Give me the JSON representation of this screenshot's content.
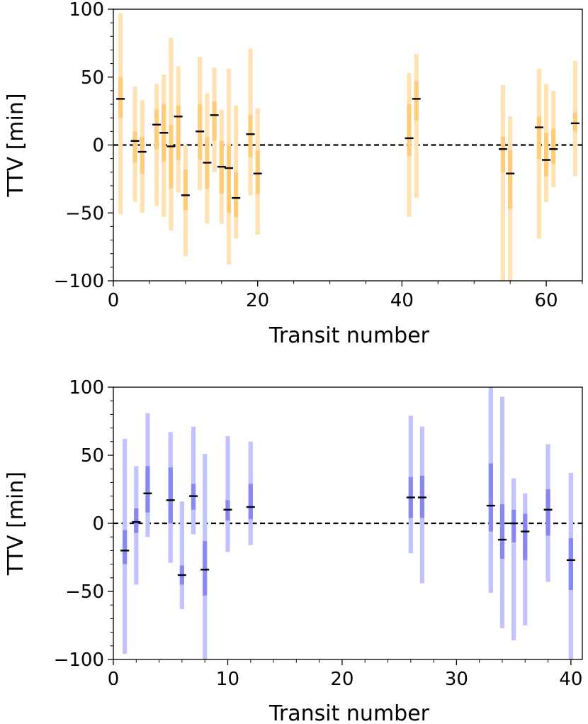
{
  "chart_data": [
    {
      "type": "errorbar",
      "id": "top",
      "xlabel": "Transit number",
      "ylabel": "TTV [min]",
      "xlim": [
        0,
        65
      ],
      "ylim": [
        -100,
        100
      ],
      "xticks": [
        0,
        20,
        40,
        60
      ],
      "xtick_labels": [
        "0",
        "20",
        "40",
        "60"
      ],
      "yticks": [
        -100,
        -50,
        0,
        50,
        100
      ],
      "ytick_labels": [
        "−100",
        "−50",
        "0",
        "50",
        "100"
      ],
      "zero_line": 0,
      "colors": {
        "outer": "#ffe2b3",
        "inner": "#ffcc7a",
        "marker": "#000000"
      },
      "points": [
        {
          "x": 1,
          "y": 34,
          "inner": [
            20,
            50
          ],
          "outer": [
            -51,
            97
          ]
        },
        {
          "x": 3,
          "y": 3,
          "inner": [
            -13,
            10
          ],
          "outer": [
            -42,
            43
          ]
        },
        {
          "x": 4,
          "y": -5,
          "inner": [
            -21,
            6
          ],
          "outer": [
            -50,
            33
          ]
        },
        {
          "x": 6,
          "y": 15,
          "inner": [
            -3,
            26
          ],
          "outer": [
            -45,
            45
          ]
        },
        {
          "x": 7,
          "y": 9,
          "inner": [
            -12,
            30
          ],
          "outer": [
            -53,
            52
          ]
        },
        {
          "x": 8,
          "y": -1,
          "inner": [
            -32,
            15
          ],
          "outer": [
            -63,
            79
          ]
        },
        {
          "x": 9,
          "y": 21,
          "inner": [
            -11,
            29
          ],
          "outer": [
            -35,
            58
          ]
        },
        {
          "x": 10,
          "y": -37,
          "inner": [
            -48,
            -18
          ],
          "outer": [
            -82,
            0
          ]
        },
        {
          "x": 12,
          "y": 10,
          "inner": [
            -11,
            30
          ],
          "outer": [
            -33,
            65
          ]
        },
        {
          "x": 13,
          "y": -13,
          "inner": [
            -32,
            6
          ],
          "outer": [
            -58,
            38
          ]
        },
        {
          "x": 14,
          "y": 22,
          "inner": [
            3,
            32
          ],
          "outer": [
            -20,
            57
          ]
        },
        {
          "x": 15,
          "y": -16,
          "inner": [
            -36,
            3
          ],
          "outer": [
            -58,
            26
          ]
        },
        {
          "x": 16,
          "y": -17,
          "inner": [
            -50,
            0
          ],
          "outer": [
            -88,
            56
          ]
        },
        {
          "x": 17,
          "y": -39,
          "inner": [
            -53,
            -20
          ],
          "outer": [
            -69,
            29
          ]
        },
        {
          "x": 19,
          "y": 8,
          "inner": [
            -9,
            22
          ],
          "outer": [
            -37,
            71
          ]
        },
        {
          "x": 20,
          "y": -21,
          "inner": [
            -36,
            -4
          ],
          "outer": [
            -66,
            27
          ]
        },
        {
          "x": 41,
          "y": 5,
          "inner": [
            -8,
            30
          ],
          "outer": [
            -53,
            53
          ]
        },
        {
          "x": 42,
          "y": 34,
          "inner": [
            18,
            47
          ],
          "outer": [
            -39,
            67
          ]
        },
        {
          "x": 54,
          "y": -3,
          "inner": [
            -20,
            6
          ],
          "outer": [
            -100,
            44
          ]
        },
        {
          "x": 55,
          "y": -21,
          "inner": [
            -47,
            -4
          ],
          "outer": [
            -100,
            21
          ]
        },
        {
          "x": 59,
          "y": 13,
          "inner": [
            -10,
            21
          ],
          "outer": [
            -69,
            56
          ]
        },
        {
          "x": 60,
          "y": -11,
          "inner": [
            -23,
            9
          ],
          "outer": [
            -42,
            45
          ]
        },
        {
          "x": 61,
          "y": -3,
          "inner": [
            -14,
            12
          ],
          "outer": [
            -31,
            40
          ]
        },
        {
          "x": 64,
          "y": 16,
          "inner": [
            10,
            24
          ],
          "outer": [
            -23,
            62
          ]
        }
      ]
    },
    {
      "type": "errorbar",
      "id": "bottom",
      "xlabel": "Transit number",
      "ylabel": "TTV [min]",
      "xlim": [
        0,
        41
      ],
      "ylim": [
        -100,
        100
      ],
      "xticks": [
        0,
        10,
        20,
        30,
        40
      ],
      "xtick_labels": [
        "0",
        "10",
        "20",
        "30",
        "40"
      ],
      "yticks": [
        -100,
        -50,
        0,
        50,
        100
      ],
      "ytick_labels": [
        "−100",
        "−50",
        "0",
        "50",
        "100"
      ],
      "zero_line": 0,
      "colors": {
        "outer": "#c2c2ff",
        "inner": "#8888f5",
        "marker": "#000000"
      },
      "points": [
        {
          "x": 1,
          "y": -20,
          "inner": [
            -30,
            -5
          ],
          "outer": [
            -96,
            62
          ]
        },
        {
          "x": 2,
          "y": 1,
          "inner": [
            -7,
            11
          ],
          "outer": [
            -45,
            42
          ]
        },
        {
          "x": 3,
          "y": 22,
          "inner": [
            8,
            42
          ],
          "outer": [
            -10,
            81
          ]
        },
        {
          "x": 5,
          "y": 17,
          "inner": [
            0,
            41
          ],
          "outer": [
            -29,
            67
          ]
        },
        {
          "x": 6,
          "y": -38,
          "inner": [
            -45,
            -31
          ],
          "outer": [
            -63,
            16
          ]
        },
        {
          "x": 7,
          "y": 20,
          "inner": [
            10,
            29
          ],
          "outer": [
            -8,
            71
          ]
        },
        {
          "x": 8,
          "y": -34,
          "inner": [
            -53,
            -13
          ],
          "outer": [
            -100,
            51
          ]
        },
        {
          "x": 10,
          "y": 10,
          "inner": [
            2,
            17
          ],
          "outer": [
            -21,
            64
          ]
        },
        {
          "x": 12,
          "y": 12,
          "inner": [
            3,
            29
          ],
          "outer": [
            -16,
            60
          ]
        },
        {
          "x": 26,
          "y": 19,
          "inner": [
            4,
            34
          ],
          "outer": [
            -22,
            79
          ]
        },
        {
          "x": 27,
          "y": 19,
          "inner": [
            4,
            35
          ],
          "outer": [
            -44,
            71
          ]
        },
        {
          "x": 33,
          "y": 13,
          "inner": [
            -6,
            44
          ],
          "outer": [
            -51,
            100
          ]
        },
        {
          "x": 34,
          "y": -12,
          "inner": [
            -26,
            14
          ],
          "outer": [
            -77,
            93
          ]
        },
        {
          "x": 35,
          "y": 0,
          "inner": [
            -14,
            10
          ],
          "outer": [
            -86,
            33
          ]
        },
        {
          "x": 36,
          "y": -6,
          "inner": [
            -27,
            7
          ],
          "outer": [
            -75,
            22
          ]
        },
        {
          "x": 38,
          "y": 10,
          "inner": [
            -9,
            25
          ],
          "outer": [
            -43,
            58
          ]
        },
        {
          "x": 40,
          "y": -27,
          "inner": [
            -49,
            -11
          ],
          "outer": [
            -100,
            37
          ]
        }
      ]
    }
  ]
}
